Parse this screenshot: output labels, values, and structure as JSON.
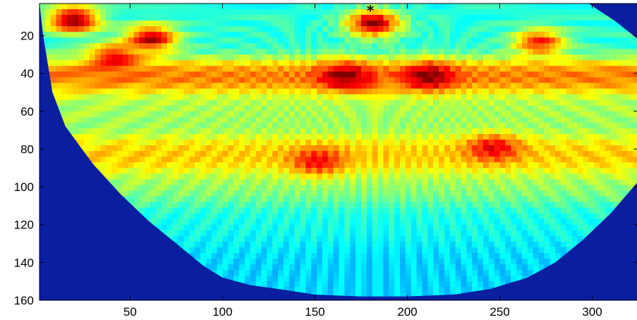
{
  "chart_data": {
    "type": "heatmap",
    "title": "",
    "xlabel": "",
    "ylabel": "",
    "xlim": [
      1,
      325
    ],
    "ylim": [
      160,
      3
    ],
    "y_reversed": true,
    "grid": false,
    "colormap": "jet",
    "x_ticks": [
      50,
      100,
      150,
      200,
      250,
      300
    ],
    "y_ticks": [
      20,
      40,
      60,
      80,
      100,
      120,
      140,
      160
    ],
    "x_tick_labels": [
      "50",
      "100",
      "150",
      "200",
      "250",
      "300"
    ],
    "y_tick_labels": [
      "20",
      "40",
      "60",
      "80",
      "100",
      "120",
      "140",
      "160"
    ],
    "background_color": "#0a1ea0",
    "marker": {
      "symbol": "*",
      "x": 180,
      "y": 6
    },
    "fan_mask_curve": [
      [
        3,
        20
      ],
      [
        8,
        50
      ],
      [
        15,
        68
      ],
      [
        30,
        88
      ],
      [
        45,
        104
      ],
      [
        60,
        118
      ],
      [
        75,
        130
      ],
      [
        90,
        142
      ],
      [
        100,
        148
      ],
      [
        115,
        152
      ],
      [
        130,
        154
      ],
      [
        150,
        157
      ],
      [
        175,
        158
      ],
      [
        200,
        158
      ],
      [
        225,
        157
      ],
      [
        245,
        154
      ],
      [
        265,
        148
      ],
      [
        280,
        140
      ],
      [
        295,
        128
      ],
      [
        310,
        114
      ],
      [
        325,
        97
      ]
    ],
    "right_edge_curve": [
      [
        298,
        3
      ],
      [
        312,
        12
      ],
      [
        325,
        22
      ]
    ],
    "bands": [
      {
        "y": 15,
        "value": 0.45,
        "width": 14
      },
      {
        "y": 40,
        "value": 0.95,
        "width": 9
      },
      {
        "y": 58,
        "value": 0.62,
        "width": 10
      },
      {
        "y": 82,
        "value": 0.82,
        "width": 11
      },
      {
        "y": 100,
        "value": 0.58,
        "width": 9
      },
      {
        "y": 118,
        "value": 0.42,
        "width": 12
      },
      {
        "y": 145,
        "value": 0.33,
        "width": 18
      }
    ],
    "blobs": [
      {
        "x": 18,
        "y": 10,
        "value": 1.0
      },
      {
        "x": 60,
        "y": 20,
        "value": 0.95
      },
      {
        "x": 40,
        "y": 30,
        "value": 0.9
      },
      {
        "x": 180,
        "y": 12,
        "value": 0.98
      },
      {
        "x": 165,
        "y": 40,
        "value": 1.0
      },
      {
        "x": 210,
        "y": 40,
        "value": 1.0
      },
      {
        "x": 270,
        "y": 22,
        "value": 0.85
      },
      {
        "x": 245,
        "y": 78,
        "value": 0.9
      },
      {
        "x": 150,
        "y": 85,
        "value": 0.88
      }
    ]
  }
}
